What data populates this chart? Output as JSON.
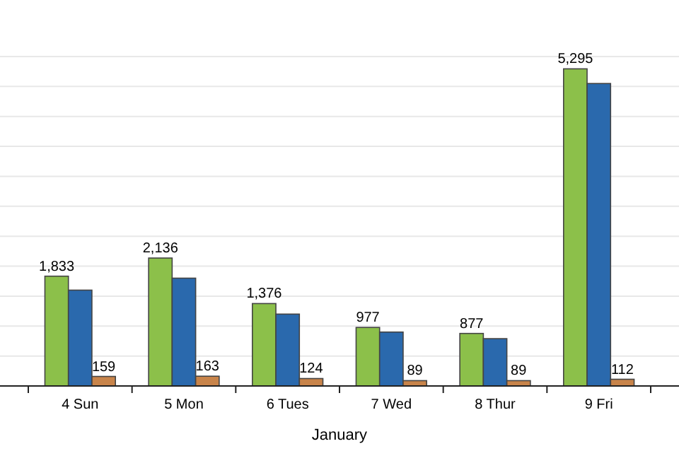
{
  "chart_data": {
    "type": "bar",
    "xlabel": "January",
    "categories": [
      "4 Sun",
      "5 Mon",
      "6 Tues",
      "7 Wed",
      "8 Thur",
      "9 Fri"
    ],
    "series": [
      {
        "color": "#8cc04a",
        "values": [
          1833,
          2136,
          1376,
          977,
          877,
          5295
        ],
        "value_labels": [
          "1,833",
          "2,136",
          "1,376",
          "977",
          "877",
          "5,295"
        ]
      },
      {
        "color": "#2a69ad",
        "values": [
          1600,
          1800,
          1200,
          900,
          790,
          5050
        ]
      },
      {
        "color": "#c8844a",
        "values": [
          159,
          163,
          124,
          89,
          89,
          112
        ],
        "value_labels": [
          "159",
          "163",
          "124",
          "89",
          "89",
          "112"
        ]
      }
    ],
    "ylim": [
      0,
      5500
    ],
    "yticks": [
      {
        "value": 0,
        "label": null
      },
      {
        "value": 500,
        "label": null
      },
      {
        "value": 1000,
        "label": null
      },
      {
        "value": 1500,
        "label": null
      },
      {
        "value": 2000,
        "label": null
      },
      {
        "value": 2500,
        "label": null
      },
      {
        "value": 3000,
        "label": null
      },
      {
        "value": 3500,
        "label": null
      },
      {
        "value": 4000,
        "label": null
      },
      {
        "value": 4500,
        "label": null
      },
      {
        "value": 5000,
        "label": null
      },
      {
        "value": 5500,
        "label": null
      }
    ],
    "grid": "y",
    "tick_labels": "x"
  }
}
